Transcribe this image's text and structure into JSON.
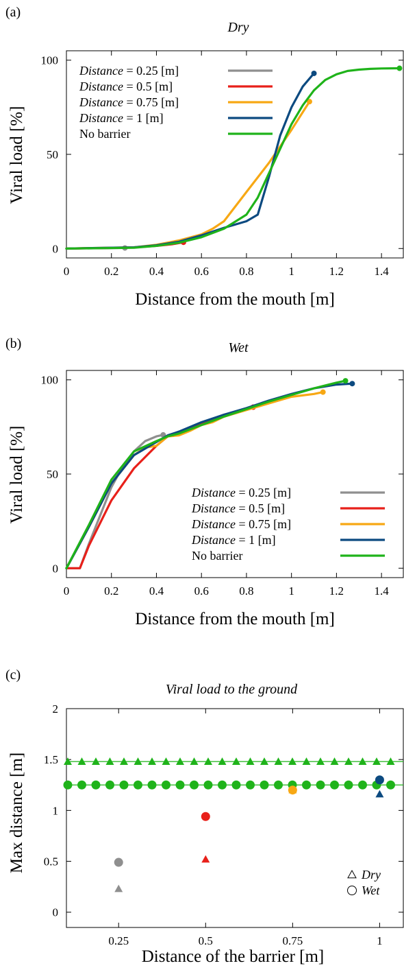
{
  "chart_data": [
    {
      "type": "line",
      "panel_label": "(a)",
      "title": "Dry",
      "xlabel": "Distance from the mouth [m]",
      "ylabel": "Viral load [%]",
      "xlim": [
        0,
        1.5
      ],
      "ylim": [
        -5,
        105
      ],
      "xticks": [
        "0",
        "0.2",
        "0.4",
        "0.6",
        "0.8",
        "1",
        "1.2",
        "1.4"
      ],
      "yticks": [
        "0",
        "50",
        "100"
      ],
      "legend_position": "top-left",
      "series": [
        {
          "name": "Distance = 0.25 [m]",
          "name_prefix": "Distance",
          "name_suffix": " = 0.25 [m]",
          "color": "#8f8f8f",
          "x": [
            0.0,
            0.1,
            0.2,
            0.26
          ],
          "y": [
            0.0,
            0.1,
            0.2,
            0.3
          ]
        },
        {
          "name": "Distance = 0.5 [m]",
          "name_prefix": "Distance",
          "name_suffix": " = 0.5 [m]",
          "color": "#e8201a",
          "x": [
            0.0,
            0.2,
            0.3,
            0.4,
            0.47,
            0.52
          ],
          "y": [
            0.0,
            0.3,
            0.6,
            1.4,
            2.3,
            3.3
          ]
        },
        {
          "name": "Distance = 0.75 [m]",
          "name_prefix": "Distance",
          "name_suffix": " = 0.75 [m]",
          "color": "#f7a814",
          "x": [
            0.0,
            0.3,
            0.4,
            0.5,
            0.6,
            0.65,
            0.7,
            0.8,
            0.9,
            1.0,
            1.08
          ],
          "y": [
            0.0,
            0.6,
            2.0,
            4.3,
            7.5,
            10.5,
            14.5,
            30.0,
            45.5,
            63.0,
            78.0
          ]
        },
        {
          "name": "Distance = 1 [m]",
          "name_prefix": "Distance",
          "name_suffix": " = 1 [m]",
          "color": "#0c4a80",
          "x": [
            0.0,
            0.3,
            0.4,
            0.5,
            0.6,
            0.7,
            0.8,
            0.85,
            0.9,
            0.95,
            1.0,
            1.05,
            1.1
          ],
          "y": [
            0.0,
            0.6,
            1.7,
            3.6,
            7.0,
            11.0,
            14.5,
            18.0,
            38.0,
            60.0,
            75.0,
            86.0,
            93.0
          ]
        },
        {
          "name": "No barrier",
          "color": "#1fb31a",
          "x": [
            0.0,
            0.3,
            0.4,
            0.5,
            0.6,
            0.7,
            0.8,
            0.85,
            0.9,
            0.95,
            1.0,
            1.05,
            1.1,
            1.15,
            1.2,
            1.25,
            1.3,
            1.35,
            1.4,
            1.48
          ],
          "y": [
            0.0,
            0.4,
            1.4,
            3.1,
            6.0,
            10.5,
            18.0,
            27.0,
            40.0,
            53.0,
            66.0,
            76.0,
            84.0,
            89.5,
            92.5,
            94.3,
            95.0,
            95.4,
            95.6,
            95.7
          ]
        }
      ]
    },
    {
      "type": "line",
      "panel_label": "(b)",
      "title": "Wet",
      "xlabel": "Distance from the mouth [m]",
      "ylabel": "Viral load [%]",
      "xlim": [
        0,
        1.5
      ],
      "ylim": [
        -5,
        105
      ],
      "xticks": [
        "0",
        "0.2",
        "0.4",
        "0.6",
        "0.8",
        "1",
        "1.2",
        "1.4"
      ],
      "yticks": [
        "0",
        "50",
        "100"
      ],
      "legend_position": "bottom-right",
      "series": [
        {
          "name": "Distance = 0.25 [m]",
          "name_prefix": "Distance",
          "name_suffix": " = 0.25 [m]",
          "color": "#8f8f8f",
          "x": [
            0.0,
            0.06,
            0.1,
            0.15,
            0.2,
            0.25,
            0.3,
            0.35,
            0.4,
            0.43
          ],
          "y": [
            0.0,
            0.0,
            13.0,
            28.0,
            43.0,
            54.0,
            62.0,
            67.5,
            70.0,
            70.8
          ]
        },
        {
          "name": "Distance = 0.5 [m]",
          "name_prefix": "Distance",
          "name_suffix": " = 0.5 [m]",
          "color": "#e8201a",
          "x": [
            0.0,
            0.06,
            0.1,
            0.2,
            0.3,
            0.4,
            0.45,
            0.5,
            0.6,
            0.7,
            0.8,
            0.83
          ],
          "y": [
            0.0,
            0.0,
            12.0,
            36.0,
            53.0,
            65.0,
            70.0,
            71.5,
            76.5,
            81.5,
            84.5,
            85.5
          ]
        },
        {
          "name": "Distance = 0.75 [m]",
          "name_prefix": "Distance",
          "name_suffix": " = 0.75 [m]",
          "color": "#f7a814",
          "x": [
            0.0,
            0.1,
            0.2,
            0.3,
            0.35,
            0.4,
            0.45,
            0.5,
            0.55,
            0.6,
            0.65,
            0.7,
            0.8,
            0.9,
            1.0,
            1.1,
            1.14
          ],
          "y": [
            0.0,
            22.0,
            45.0,
            60.0,
            64.0,
            65.0,
            70.0,
            70.5,
            73.0,
            76.0,
            77.5,
            80.5,
            84.0,
            87.5,
            91.0,
            92.5,
            93.5
          ]
        },
        {
          "name": "Distance = 1 [m]",
          "name_prefix": "Distance",
          "name_suffix": " = 1 [m]",
          "color": "#0c4a80",
          "x": [
            0.0,
            0.1,
            0.2,
            0.3,
            0.4,
            0.45,
            0.5,
            0.6,
            0.7,
            0.8,
            0.9,
            1.0,
            1.1,
            1.2,
            1.27
          ],
          "y": [
            0.0,
            22.0,
            45.0,
            60.0,
            67.0,
            70.5,
            72.5,
            77.5,
            81.5,
            85.0,
            89.0,
            92.5,
            95.5,
            97.5,
            98.0
          ]
        },
        {
          "name": "No barrier",
          "color": "#1fb31a",
          "x": [
            0.0,
            0.1,
            0.2,
            0.3,
            0.4,
            0.45,
            0.5,
            0.6,
            0.7,
            0.8,
            0.9,
            1.0,
            1.1,
            1.2,
            1.24
          ],
          "y": [
            0.0,
            23.0,
            47.0,
            62.0,
            67.5,
            70.0,
            71.5,
            76.0,
            80.5,
            84.5,
            88.5,
            92.0,
            95.5,
            98.5,
            99.5
          ]
        }
      ]
    },
    {
      "type": "scatter",
      "panel_label": "(c)",
      "title": "Viral load to the ground",
      "xlabel": "Distance of the barrier [m]",
      "ylabel": "Max distance [m]",
      "xlim": [
        0.1,
        1.07
      ],
      "ylim": [
        -0.15,
        2.0
      ],
      "xticks": [
        "0.25",
        "0.5",
        "0.75",
        "1"
      ],
      "yticks": [
        "0",
        "0.5",
        "1",
        "1.5",
        "2"
      ],
      "legend_position": "bottom-right",
      "legend": [
        {
          "marker": "triangle",
          "label": "Dry"
        },
        {
          "marker": "circle",
          "label": "Wet"
        }
      ],
      "reference_lines": [
        {
          "marker": "triangle",
          "color": "#1fb31a",
          "y": 1.48
        },
        {
          "marker": "circle",
          "color": "#1fb31a",
          "y": 1.25
        }
      ],
      "points": [
        {
          "x": 0.25,
          "y": 0.49,
          "marker": "circle",
          "color": "#8f8f8f"
        },
        {
          "x": 0.25,
          "y": 0.23,
          "marker": "triangle",
          "color": "#8f8f8f"
        },
        {
          "x": 0.5,
          "y": 0.94,
          "marker": "circle",
          "color": "#e8201a"
        },
        {
          "x": 0.5,
          "y": 0.52,
          "marker": "triangle",
          "color": "#e8201a"
        },
        {
          "x": 0.75,
          "y": 1.2,
          "marker": "circle",
          "color": "#f7a814"
        },
        {
          "x": 0.75,
          "y": 1.2,
          "marker": "triangle",
          "color": "#f7a814"
        },
        {
          "x": 1.0,
          "y": 1.3,
          "marker": "circle",
          "color": "#0c4a80"
        },
        {
          "x": 1.0,
          "y": 1.16,
          "marker": "triangle",
          "color": "#0c4a80"
        }
      ]
    }
  ]
}
